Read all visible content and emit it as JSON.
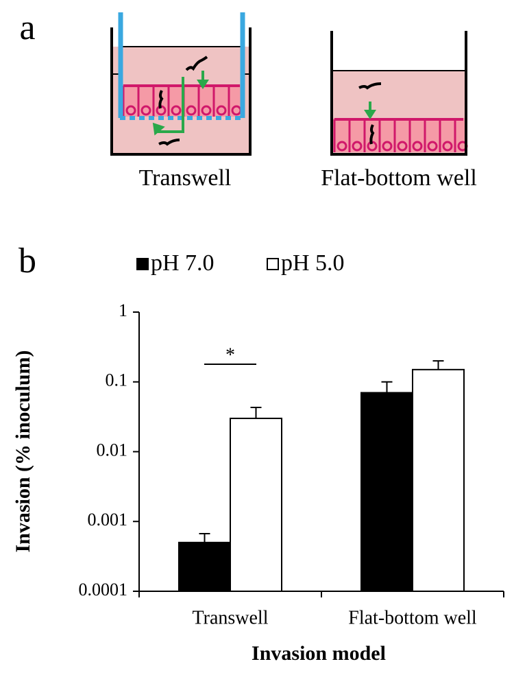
{
  "panel_labels": [
    "a",
    "b"
  ],
  "diagram": {
    "labels": [
      "Transwell",
      "Flat-bottom well"
    ]
  },
  "chart_data": {
    "type": "bar",
    "yscale": "log",
    "categories": [
      "Transwell",
      "Flat-bottom well"
    ],
    "series": [
      {
        "name": "pH 7.0",
        "color": "#000000",
        "values": [
          0.0005,
          0.07
        ],
        "errors": [
          0.00017,
          0.03
        ]
      },
      {
        "name": "pH 5.0",
        "color": "#ffffff",
        "values": [
          0.03,
          0.15
        ],
        "errors": [
          0.013,
          0.05
        ]
      }
    ],
    "ylim": [
      0.0001,
      1
    ],
    "yticks": [
      0.0001,
      0.001,
      0.01,
      0.1,
      1
    ],
    "y_label": "Invasion (% inoculum)",
    "x_label": "Invasion model",
    "annotation": "*",
    "legend": "top"
  }
}
